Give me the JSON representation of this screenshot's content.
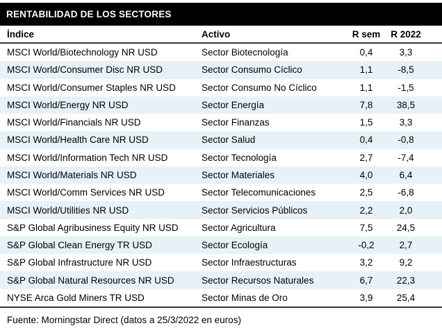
{
  "title": "RENTABILIDAD DE LOS SECTORES",
  "footer": "Fuente: Morningstar Direct (datos a 25/3/2022 en euros)",
  "colors": {
    "title_bar_bg": "#000000",
    "title_bar_text": "#ffffff",
    "row_stripe": "#e7f2f8",
    "rule": "#333333",
    "text": "#000000"
  },
  "chart_data": {
    "type": "table",
    "title": "RENTABILIDAD DE LOS SECTORES",
    "columns": [
      "Índice",
      "Activo",
      "R sem",
      "R 2022"
    ],
    "rows": [
      [
        "MSCI World/Biotechnology NR USD",
        "Sector Biotecnología",
        "0,4",
        "3,3"
      ],
      [
        "MSCI World/Consumer Disc NR USD",
        "Sector Consumo Cíclico",
        "1,1",
        "-8,5"
      ],
      [
        "MSCI World/Consumer Staples NR USD",
        "Sector Consumo No Cíclico",
        "1,1",
        "-1,5"
      ],
      [
        "MSCI World/Energy NR USD",
        "Sector Energía",
        "7,8",
        "38,5"
      ],
      [
        "MSCI World/Financials NR USD",
        "Sector Finanzas",
        "1,5",
        "3,3"
      ],
      [
        "MSCI World/Health Care NR USD",
        "Sector Salud",
        "0,4",
        "-0,8"
      ],
      [
        "MSCI World/Information Tech NR USD",
        "Sector Tecnología",
        "2,7",
        "-7,4"
      ],
      [
        "MSCI World/Materials NR USD",
        "Sector Materiales",
        "4,0",
        "6,4"
      ],
      [
        "MSCI World/Comm Services NR USD",
        "Sector Telecomunicaciones",
        "2,5",
        "-6,8"
      ],
      [
        "MSCI World/Utilities NR USD",
        "Sector Servicios Públicos",
        "2,2",
        "2,0"
      ],
      [
        "S&P Global Agribusiness Equity NR USD",
        "Sector Agricultura",
        "7,5",
        "24,5"
      ],
      [
        "S&P Global Clean Energy TR USD",
        "Sector Ecología",
        "-0,2",
        "2,7"
      ],
      [
        "S&P Global Infrastructure NR USD",
        "Sector Infraestructuras",
        "3,2",
        "9,2"
      ],
      [
        "S&P Global Natural Resources NR USD",
        "Sector Recursos Naturales",
        "6,7",
        "22,3"
      ],
      [
        "NYSE Arca Gold Miners TR USD",
        "Sector Minas de Oro",
        "3,9",
        "25,4"
      ]
    ],
    "source": "Fuente: Morningstar Direct (datos a 25/3/2022 en euros)",
    "layout": {
      "zebra_striping": "even rows shaded",
      "numeric_columns_alignment": "center",
      "text_columns_alignment": "left"
    }
  }
}
